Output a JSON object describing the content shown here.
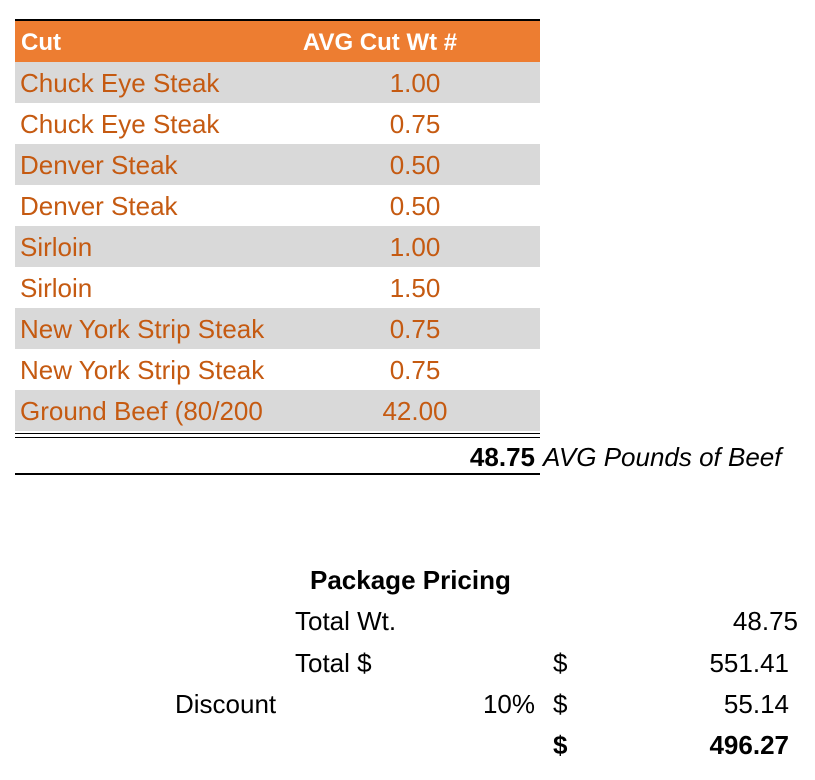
{
  "table": {
    "headers": {
      "cut": "Cut",
      "avg_wt": "AVG Cut Wt #"
    },
    "rows": [
      {
        "cut": "Chuck Eye Steak",
        "wt": "1.00"
      },
      {
        "cut": "Chuck Eye Steak",
        "wt": "0.75"
      },
      {
        "cut": "Denver Steak",
        "wt": "0.50"
      },
      {
        "cut": "Denver Steak",
        "wt": "0.50"
      },
      {
        "cut": "Sirloin",
        "wt": "1.00"
      },
      {
        "cut": "Sirloin",
        "wt": "1.50"
      },
      {
        "cut": "New York Strip Steak",
        "wt": "0.75"
      },
      {
        "cut": "New York Strip Steak",
        "wt": "0.75"
      },
      {
        "cut": "Ground Beef (80/200",
        "wt": "42.00"
      }
    ],
    "total_value": "48.75",
    "total_label": "AVG Pounds of Beef"
  },
  "pricing": {
    "title": "Package Pricing",
    "total_wt_label": "Total Wt.",
    "total_wt_value": "48.75",
    "total_dollar_label": "Total $",
    "total_dollar_sign": "$",
    "total_dollar_value": "551.41",
    "discount_label": "Discount",
    "discount_percent": "10%",
    "discount_sign": "$",
    "discount_value": "55.14",
    "final_sign": "$",
    "final_value": "496.27"
  },
  "colors": {
    "header_bg": "#ed7d31",
    "header_text": "#ffffff",
    "row_text": "#c55a11",
    "band_bg": "#d9d9d9"
  }
}
